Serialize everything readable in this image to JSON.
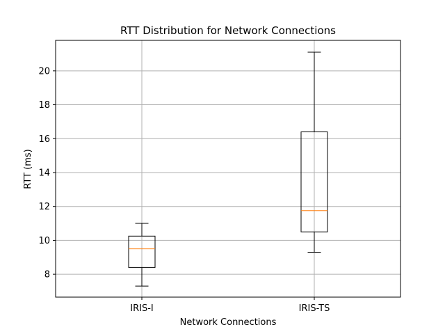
{
  "chart_data": {
    "type": "box",
    "title": "RTT Distribution for Network Connections",
    "xlabel": "Network Connections",
    "ylabel": "RTT (ms)",
    "ylim": [
      6.65,
      21.8
    ],
    "yticks": [
      8,
      10,
      12,
      14,
      16,
      18,
      20
    ],
    "grid": true,
    "categories": [
      "IRIS-I",
      "IRIS-TS"
    ],
    "boxes": [
      {
        "name": "IRIS-I",
        "whisker_low": 7.3,
        "q1": 8.4,
        "median": 9.5,
        "q3": 10.25,
        "whisker_high": 11.0
      },
      {
        "name": "IRIS-TS",
        "whisker_low": 9.3,
        "q1": 10.5,
        "median": 11.75,
        "q3": 16.4,
        "whisker_high": 21.1
      }
    ],
    "colors": {
      "box": "#000000",
      "median": "#ff7f0e",
      "grid": "#b0b0b0"
    }
  }
}
